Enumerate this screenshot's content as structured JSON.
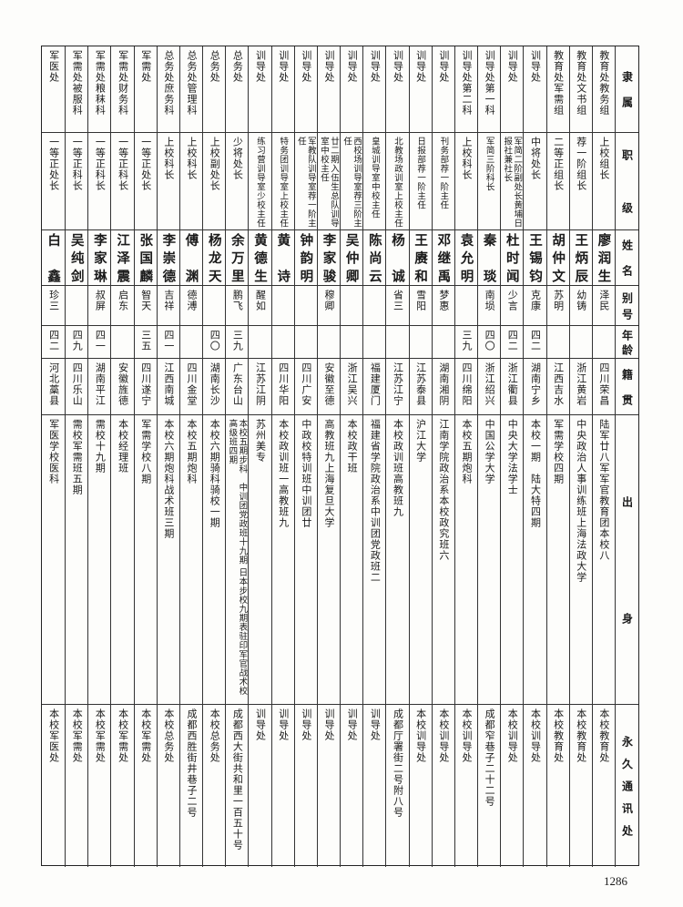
{
  "headers": [
    "隶属",
    "职级",
    "姓名",
    "别号",
    "年龄",
    "籍贯",
    "出身",
    "永久通讯处"
  ],
  "rows": [
    {
      "unit": "教育处教务组",
      "rank": "上校组长",
      "name": "廖润生",
      "alias": "泽民",
      "age": "",
      "origin": "四川荣昌",
      "background": "陆军廿八军军官教育团本校八",
      "address": "本校教育处"
    },
    {
      "unit": "教育处文书组",
      "rank": "荐一阶组长",
      "name": "王炳辰",
      "alias": "幼铸",
      "age": "",
      "origin": "浙江黄岩",
      "background": "中央政治人事训练班上海法政大学",
      "address": "本校教育处"
    },
    {
      "unit": "教育处军需组",
      "rank": "二等正组长",
      "name": "胡仲文",
      "alias": "苏明",
      "age": "",
      "origin": "江西吉水",
      "background": "军需学校四期",
      "address": "本校教育处"
    },
    {
      "unit": "训导处",
      "rank": "中将处长",
      "name": "王锡钧",
      "alias": "克康",
      "age": "四二",
      "origin": "湖南宁乡",
      "background": "本校一期　陆大特四期",
      "address": "本校训导处"
    },
    {
      "unit": "训导处",
      "rank": "军简二阶副处长黄埔日报社兼社长",
      "name": "杜时闻",
      "alias": "少言",
      "age": "四二",
      "origin": "浙江衢县",
      "background": "中央大学法学士",
      "address": "本校训导处"
    },
    {
      "unit": "训导处第一科",
      "rank": "军简三阶科长",
      "name": "秦琰",
      "alias": "南埙",
      "age": "四〇",
      "origin": "浙江绍兴",
      "background": "中国公学大学",
      "address": "成都窄巷子二十二号"
    },
    {
      "unit": "训导处第二科",
      "rank": "上校科长",
      "name": "袁允明",
      "alias": "",
      "age": "三九",
      "origin": "四川绵阳",
      "background": "本校五期炮科",
      "address": "本校训导处"
    },
    {
      "unit": "训导处",
      "rank": "刊务部荐一阶主任",
      "name": "邓继禹",
      "alias": "梦惠",
      "age": "",
      "origin": "湖南湘阴",
      "background": "江南学院政治系本校政究班六",
      "address": "本校训导处"
    },
    {
      "unit": "训导处",
      "rank": "日报部荐一阶主任",
      "name": "王赓和",
      "alias": "雪阳",
      "age": "",
      "origin": "江苏泰县",
      "background": "沪江大学",
      "address": "本校训导处"
    },
    {
      "unit": "训导处",
      "rank": "北教场政训室上校主任",
      "name": "杨诚",
      "alias": "省三",
      "age": "",
      "origin": "江苏江宁",
      "background": "本校政训班高教班九",
      "address": "成都厅署街二号附八号"
    },
    {
      "unit": "训导处",
      "rank": "皇城训导室中校主任",
      "name": "陈尚云",
      "alias": "",
      "age": "",
      "origin": "福建厦门",
      "background": "福建省学院政治系中训团党政班二",
      "address": "训导处"
    },
    {
      "unit": "训导处",
      "rank": "西校场训导室荐三阶主任",
      "name": "吴仲卿",
      "alias": "",
      "age": "",
      "origin": "浙江吴兴",
      "background": "本校政干班",
      "address": "训导处"
    },
    {
      "unit": "训导处",
      "rank": "廿二期入伍生总队训导室中校主任",
      "name": "李家骏",
      "alias": "穆卿",
      "age": "",
      "origin": "安徽至德",
      "background": "高教班九上海复旦大学",
      "address": "训导处"
    },
    {
      "unit": "训导处",
      "rank": "军教队训导室荐一阶主任",
      "name": "钟韵明",
      "alias": "",
      "age": "",
      "origin": "四川广安",
      "background": "中政校特训班中训团廿",
      "address": "训导处"
    },
    {
      "unit": "训导处",
      "rank": "特务团训导室上校主任",
      "name": "黄诗",
      "alias": "",
      "age": "",
      "origin": "四川华阳",
      "background": "本校政训班一高教班九",
      "address": "训导处"
    },
    {
      "unit": "训导处",
      "rank": "练习营训导室少校主任",
      "name": "黄德生",
      "alias": "醒如",
      "age": "",
      "origin": "江苏江阴",
      "background": "苏州美专",
      "address": "训导处"
    },
    {
      "unit": "总务处",
      "rank": "少将处长",
      "name": "余万里",
      "alias": "鹏飞",
      "age": "三九",
      "origin": "广东台山",
      "background": "本校五期步科　中训团党政班十九期 日本步校九期表驻印军官战术校高级班四期",
      "address": "成都西大街共和里一百五十号"
    },
    {
      "unit": "总务处",
      "rank": "上校副处长",
      "name": "杨龙天",
      "alias": "",
      "age": "四〇",
      "origin": "湖南长沙",
      "background": "本校六期骑科骑校一期",
      "address": "本校总务处"
    },
    {
      "unit": "总务处管理科",
      "rank": "上校科长",
      "name": "傅渊",
      "alias": "德溥",
      "age": "",
      "origin": "四川金堂",
      "background": "本校五期炮科",
      "address": "成都西胜街井巷子二号"
    },
    {
      "unit": "总务处庶务科",
      "rank": "上校科长",
      "name": "李崇德",
      "alias": "吉祥",
      "age": "四一",
      "origin": "江西南城",
      "background": "本校六期炮科战术班三期",
      "address": "本校总务处"
    },
    {
      "unit": "军需处",
      "rank": "一等正处长",
      "name": "张国麟",
      "alias": "智天",
      "age": "三五",
      "origin": "四川遂宁",
      "background": "军需学校八期",
      "address": "本校军需处"
    },
    {
      "unit": "军需处财务科",
      "rank": "一等正科长",
      "name": "江泽震",
      "alias": "启东",
      "age": "",
      "origin": "安徽旌德",
      "background": "本校经理班",
      "address": "本校军需处"
    },
    {
      "unit": "军需处粮秣科",
      "rank": "一等正科长",
      "name": "李家琳",
      "alias": "叔屏",
      "age": "四一",
      "origin": "湖南平江",
      "background": "需校十九期",
      "address": "本校军需处"
    },
    {
      "unit": "军需处被服科",
      "rank": "一等正科长",
      "name": "吴纯剑",
      "alias": "",
      "age": "四九",
      "origin": "四川乐山",
      "background": "需校军需班五期",
      "address": "本校军需处"
    },
    {
      "unit": "军医处",
      "rank": "一等正处长",
      "name": "白鑫",
      "alias": "珍三",
      "age": "四二",
      "origin": "河北藁县",
      "background": "军医学校医科",
      "address": "本校军医处"
    }
  ],
  "page_number": "1286"
}
